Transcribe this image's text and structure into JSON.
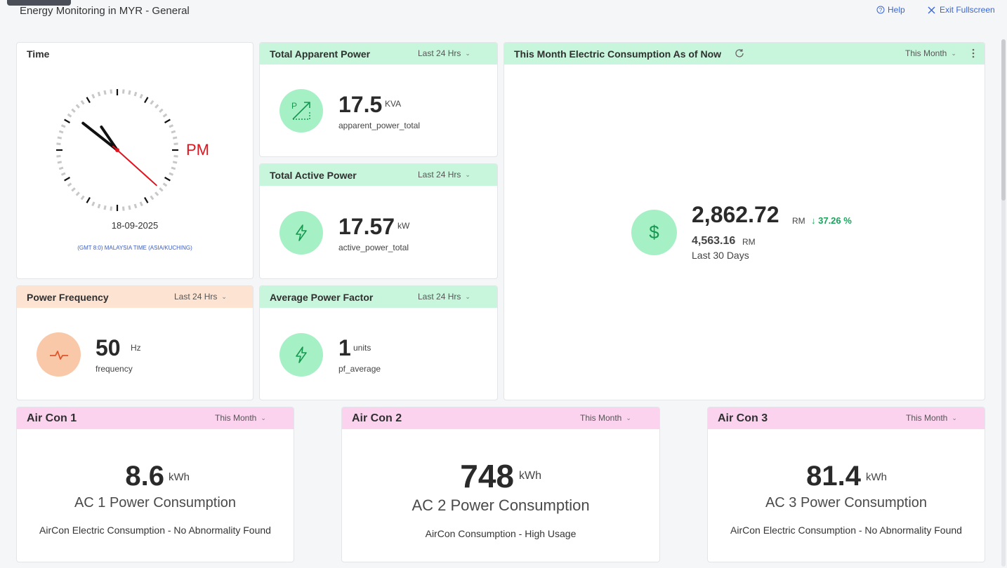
{
  "header": {
    "title": "Energy Monitoring in MYR - General",
    "help_label": "Help",
    "exit_label": "Exit Fullscreen"
  },
  "time_widget": {
    "title": "Time",
    "meridiem": "PM",
    "date": "18-09-2025",
    "timezone": "(GMT 8:0) MALAYSIA TIME (ASIA/KUCHING)",
    "hour": 10,
    "minute": 51,
    "second": 22
  },
  "apparent_power": {
    "title": "Total Apparent Power",
    "range": "Last 24 Hrs",
    "value": "17.5",
    "unit": "KVA",
    "key": "apparent_power_total",
    "icon": "apparent-power-icon"
  },
  "active_power": {
    "title": "Total Active Power",
    "range": "Last 24 Hrs",
    "value": "17.57",
    "unit": "kW",
    "key": "active_power_total",
    "icon": "lightning-icon"
  },
  "power_factor": {
    "title": "Average Power Factor",
    "range": "Last 24 Hrs",
    "value": "1",
    "unit": "units",
    "key": "pf_average",
    "icon": "lightning-icon"
  },
  "frequency": {
    "title": "Power Frequency",
    "range": "Last 24 Hrs",
    "value": "50",
    "unit": "Hz",
    "key": "frequency",
    "icon": "pulse-icon"
  },
  "monthly": {
    "title": "This Month Electric Consumption As of Now",
    "range": "This Month",
    "value": "2,862.72",
    "unit": "RM",
    "change": "↓ 37.26 %",
    "compare_value": "4,563.16",
    "compare_unit": "RM",
    "compare_label": "Last 30 Days",
    "icon": "dollar-icon"
  },
  "aircons": [
    {
      "title": "Air Con 1",
      "range": "This Month",
      "value": "8.6",
      "unit": "kWh",
      "label": "AC 1 Power Consumption",
      "status": "AirCon Electric Consumption - No Abnormality Found"
    },
    {
      "title": "Air Con 2",
      "range": "This Month",
      "value": "748",
      "unit": "kWh",
      "label": "AC 2 Power Consumption",
      "status": "AirCon Consumption - High Usage"
    },
    {
      "title": "Air Con 3",
      "range": "This Month",
      "value": "81.4",
      "unit": "kWh",
      "label": "AC 3 Power Consumption",
      "status": "AirCon Electric Consumption - No Abnormality Found"
    }
  ],
  "colors": {
    "accent_green": "#c8f6dc",
    "accent_peach": "#fde3d2",
    "accent_pink": "#fbd3ef",
    "icon_green": "#a6f0c6",
    "positive": "#1aa35c",
    "clock_red": "#e0141e",
    "link_blue": "#3866d6"
  }
}
